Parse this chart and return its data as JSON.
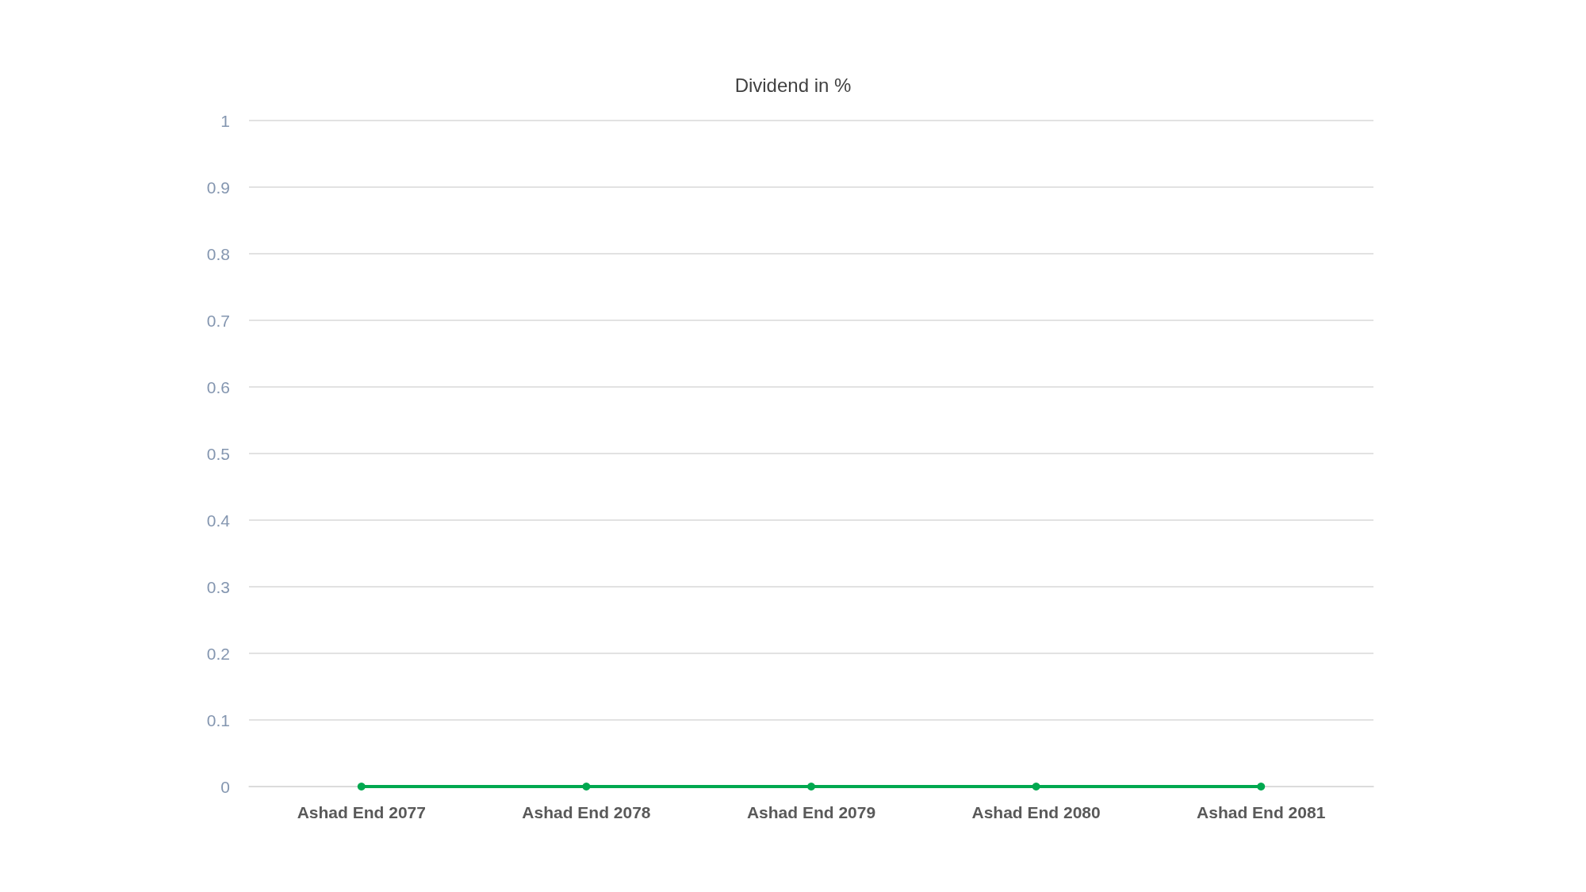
{
  "chart_data": {
    "type": "line",
    "title": "Dividend in %",
    "categories": [
      "Ashad End 2077",
      "Ashad End 2078",
      "Ashad End 2079",
      "Ashad End 2080",
      "Ashad End 2081"
    ],
    "series": [
      {
        "color": "#00a84f",
        "values": [
          0,
          0,
          0,
          0,
          0
        ]
      }
    ],
    "ylim": [
      0,
      1
    ],
    "yticks": [
      0,
      0.1,
      0.2,
      0.3,
      0.4,
      0.5,
      0.6,
      0.7,
      0.8,
      0.9,
      1
    ],
    "grid": "y",
    "marker": "circle",
    "line_style": "solid"
  }
}
